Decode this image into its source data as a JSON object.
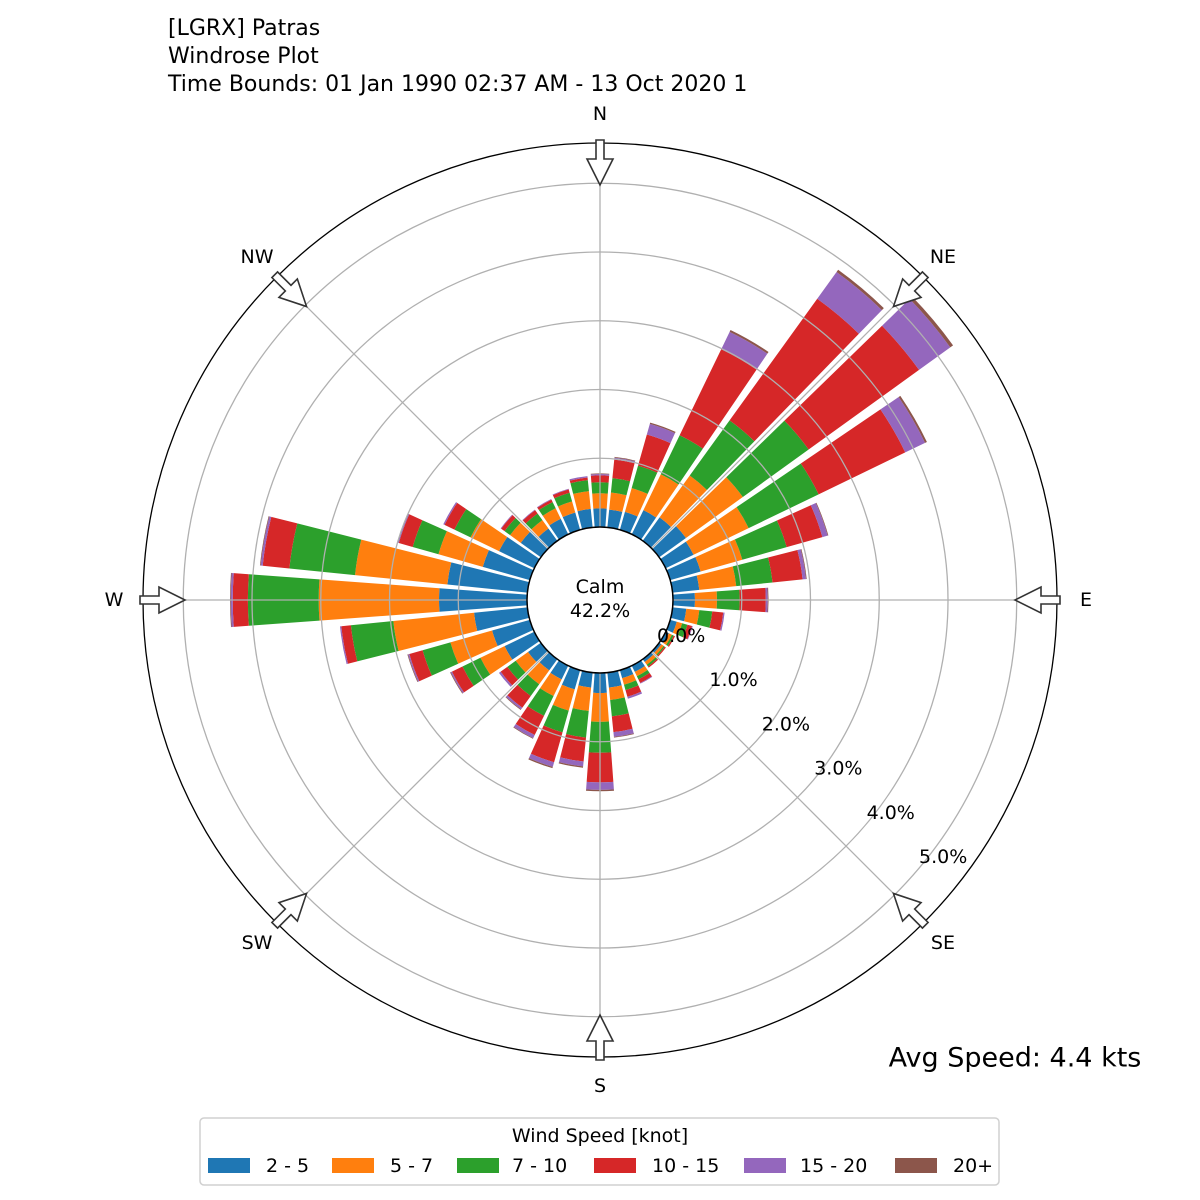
{
  "title": {
    "station": "[LGRX] Patras",
    "plot": "Windrose Plot",
    "time_bounds": "Time Bounds: 01 Jan 1990 02:37 AM - 13 Oct 2020 1"
  },
  "avg_speed": "Avg Speed: 4.4 kts",
  "calm": {
    "label": "Calm",
    "value": "42.2%"
  },
  "chart_data": {
    "type": "windrose",
    "title": "Windrose Plot",
    "direction_labels": [
      "N",
      "NE",
      "E",
      "SE",
      "S",
      "SW",
      "W",
      "NW"
    ],
    "radial_tick_labels": [
      "0.0%",
      "1.0%",
      "2.0%",
      "3.0%",
      "4.0%",
      "5.0%"
    ],
    "radial_ticks": [
      0,
      1,
      2,
      3,
      4,
      5
    ],
    "rlim": [
      0,
      5.58
    ],
    "stacking": "cumulative percent per direction",
    "directions_deg": [
      0,
      10,
      20,
      30,
      40,
      50,
      60,
      70,
      80,
      90,
      100,
      110,
      120,
      130,
      140,
      150,
      160,
      170,
      180,
      190,
      200,
      210,
      220,
      230,
      240,
      250,
      260,
      270,
      280,
      290,
      300,
      310,
      320,
      330,
      340,
      350
    ],
    "legend_title": "Wind Speed [knot]",
    "legend_position": "bottom-center",
    "series": [
      {
        "name": "2 - 5",
        "color": "#1f77b4"
      },
      {
        "name": "5 - 7",
        "color": "#ff7f0e"
      },
      {
        "name": "7 - 10",
        "color": "#2ca02c"
      },
      {
        "name": "10 - 15",
        "color": "#d62728"
      },
      {
        "name": "15 - 20",
        "color": "#9467bd"
      },
      {
        "name": "20+",
        "color": "#8c564b"
      }
    ],
    "cumulative": [
      [
        0.27,
        0.49,
        0.65,
        0.75,
        0.77,
        0.78
      ],
      [
        0.26,
        0.51,
        0.72,
        0.99,
        1.02,
        1.03
      ],
      [
        0.27,
        0.63,
        0.97,
        1.44,
        1.6,
        1.62
      ],
      [
        0.39,
        0.97,
        1.6,
        2.99,
        3.27,
        3.3
      ],
      [
        0.42,
        1.17,
        2.16,
        4.34,
        4.82,
        4.86
      ],
      [
        0.48,
        1.5,
        2.68,
        4.66,
        5.22,
        5.27
      ],
      [
        0.45,
        1.34,
        2.47,
        3.87,
        4.19,
        4.22
      ],
      [
        0.46,
        1.09,
        1.76,
        2.3,
        2.38,
        2.39
      ],
      [
        0.39,
        0.93,
        1.46,
        1.9,
        1.95,
        1.96
      ],
      [
        0.32,
        0.64,
        0.97,
        1.35,
        1.38,
        1.39
      ],
      [
        0.2,
        0.39,
        0.58,
        0.74,
        0.76,
        0.76
      ],
      [
        0.1,
        0.18,
        0.26,
        0.33,
        0.34,
        0.34
      ],
      [
        0.05,
        0.1,
        0.13,
        0.15,
        0.15,
        0.15
      ],
      [
        0.04,
        0.08,
        0.1,
        0.12,
        0.12,
        0.12
      ],
      [
        0.05,
        0.1,
        0.13,
        0.15,
        0.15,
        0.15
      ],
      [
        0.1,
        0.17,
        0.22,
        0.28,
        0.29,
        0.29
      ],
      [
        0.12,
        0.22,
        0.3,
        0.4,
        0.43,
        0.43
      ],
      [
        0.22,
        0.4,
        0.64,
        0.87,
        0.94,
        0.95
      ],
      [
        0.29,
        0.71,
        1.16,
        1.59,
        1.7,
        1.72
      ],
      [
        0.22,
        0.56,
        0.95,
        1.3,
        1.37,
        1.39
      ],
      [
        0.29,
        0.61,
        0.94,
        1.39,
        1.46,
        1.48
      ],
      [
        0.22,
        0.49,
        0.81,
        1.12,
        1.17,
        1.18
      ],
      [
        0.2,
        0.45,
        0.66,
        0.87,
        0.9,
        0.91
      ],
      [
        0.23,
        0.45,
        0.6,
        0.72,
        0.75,
        0.75
      ],
      [
        0.48,
        0.87,
        1.16,
        1.33,
        1.35,
        1.36
      ],
      [
        0.57,
        1.2,
        1.62,
        1.82,
        1.84,
        1.85
      ],
      [
        0.78,
        1.96,
        2.58,
        2.72,
        2.74,
        2.74
      ],
      [
        1.28,
        3.03,
        4.06,
        4.28,
        4.31,
        4.32
      ],
      [
        1.17,
        2.52,
        3.48,
        3.87,
        3.9,
        3.91
      ],
      [
        0.71,
        1.38,
        1.77,
        1.98,
        2.0,
        2.0
      ],
      [
        0.57,
        1.03,
        1.29,
        1.45,
        1.47,
        1.47
      ],
      [
        0.36,
        0.55,
        0.65,
        0.71,
        0.72,
        0.72
      ],
      [
        0.22,
        0.37,
        0.49,
        0.55,
        0.56,
        0.56
      ],
      [
        0.25,
        0.42,
        0.52,
        0.56,
        0.57,
        0.57
      ],
      [
        0.26,
        0.43,
        0.56,
        0.61,
        0.62,
        0.62
      ],
      [
        0.27,
        0.53,
        0.69,
        0.73,
        0.75,
        0.75
      ]
    ]
  }
}
